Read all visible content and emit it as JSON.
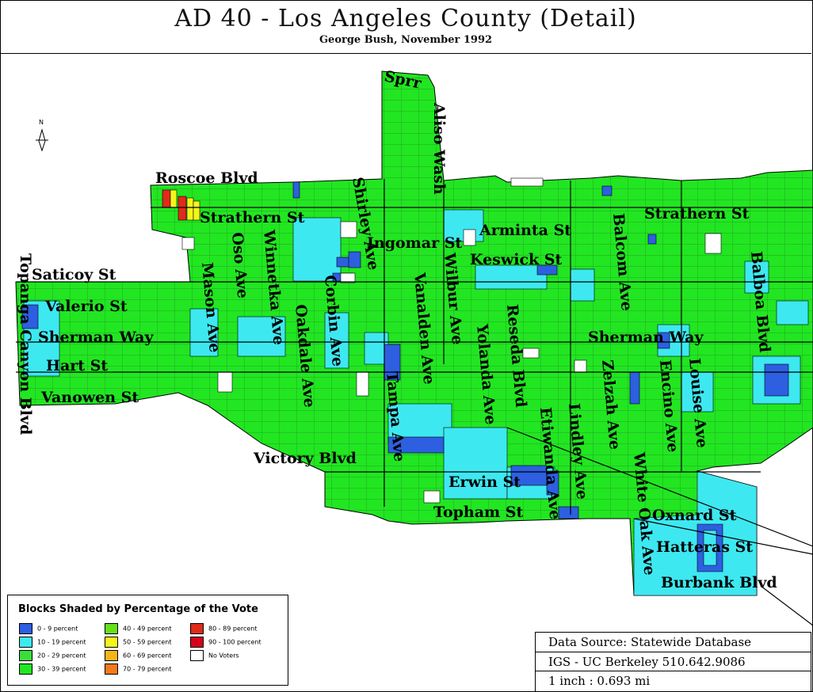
{
  "title": "AD 40 - Los Angeles County (Detail)",
  "subtitle": "George Bush, November 1992",
  "north_label": "N",
  "streets": {
    "sprr": "Sprr",
    "aliso_wash": "Aliso Wash",
    "roscoe": "Roscoe Blvd",
    "strathern_w": "Strathern St",
    "strathern_e": "Strathern St",
    "shirley": "Shirley Ave",
    "ingomar": "Ingomar St",
    "arminta": "Arminta St",
    "keswick": "Keswick St",
    "oso": "Oso Ave",
    "winnetka": "Winnetka Ave",
    "mason": "Mason Ave",
    "saticoy": "Saticoy St",
    "topanga": "Topanga Canyon Blvd",
    "valerio": "Valerio St",
    "sherman_w": "Sherman Way",
    "sherman_e": "Sherman Way",
    "hart": "Hart St",
    "vanowen": "Vanowen St",
    "corbin": "Corbin Ave",
    "oakdale": "Oakdale Ave",
    "vanalden": "Vanalden Ave",
    "wilbur": "Wilbur Ave",
    "reseda": "Reseda Blvd",
    "yolanda": "Yolanda Ave",
    "tampa": "Tampa Ave",
    "balcom": "Balcom Ave",
    "balboa": "Balboa Blvd",
    "zelzah": "Zelzah Ave",
    "encino": "Encino Ave",
    "louise": "Louise Ave",
    "etiwanda": "Etiwanda Ave",
    "lindley": "Lindley Ave",
    "white_oak": "White Oak Ave",
    "victory": "Victory Blvd",
    "erwin": "Erwin St",
    "topham": "Topham St",
    "oxnard": "Oxnard St",
    "hatteras": "Hatteras St",
    "burbank": "Burbank Blvd"
  },
  "legend": {
    "title": "Blocks Shaded by Percentage of the Vote",
    "items": [
      {
        "label": "0 - 9 percent",
        "color": "#2d5fe0"
      },
      {
        "label": "10 - 19 percent",
        "color": "#3ee8f0"
      },
      {
        "label": "20 - 29 percent",
        "color": "#3ddc3d"
      },
      {
        "label": "30 - 39 percent",
        "color": "#22e622"
      },
      {
        "label": "40 - 49 percent",
        "color": "#66e01a"
      },
      {
        "label": "50 - 59 percent",
        "color": "#f5f51a"
      },
      {
        "label": "60 - 69 percent",
        "color": "#f5b51a"
      },
      {
        "label": "70 - 79 percent",
        "color": "#f57a1a"
      },
      {
        "label": "80 - 89 percent",
        "color": "#e02a1a"
      },
      {
        "label": "90 - 100 percent",
        "color": "#d4001a"
      },
      {
        "label": "No Voters",
        "color": "#ffffff"
      }
    ]
  },
  "source": {
    "line1": "Data Source: Statewide Database",
    "line2": "IGS - UC Berkeley 510.642.9086",
    "line3": "1 inch : 0.693 mi"
  },
  "colors": {
    "green": "#22e622",
    "cyan": "#3ee8f0",
    "blue": "#2d5fe0"
  }
}
